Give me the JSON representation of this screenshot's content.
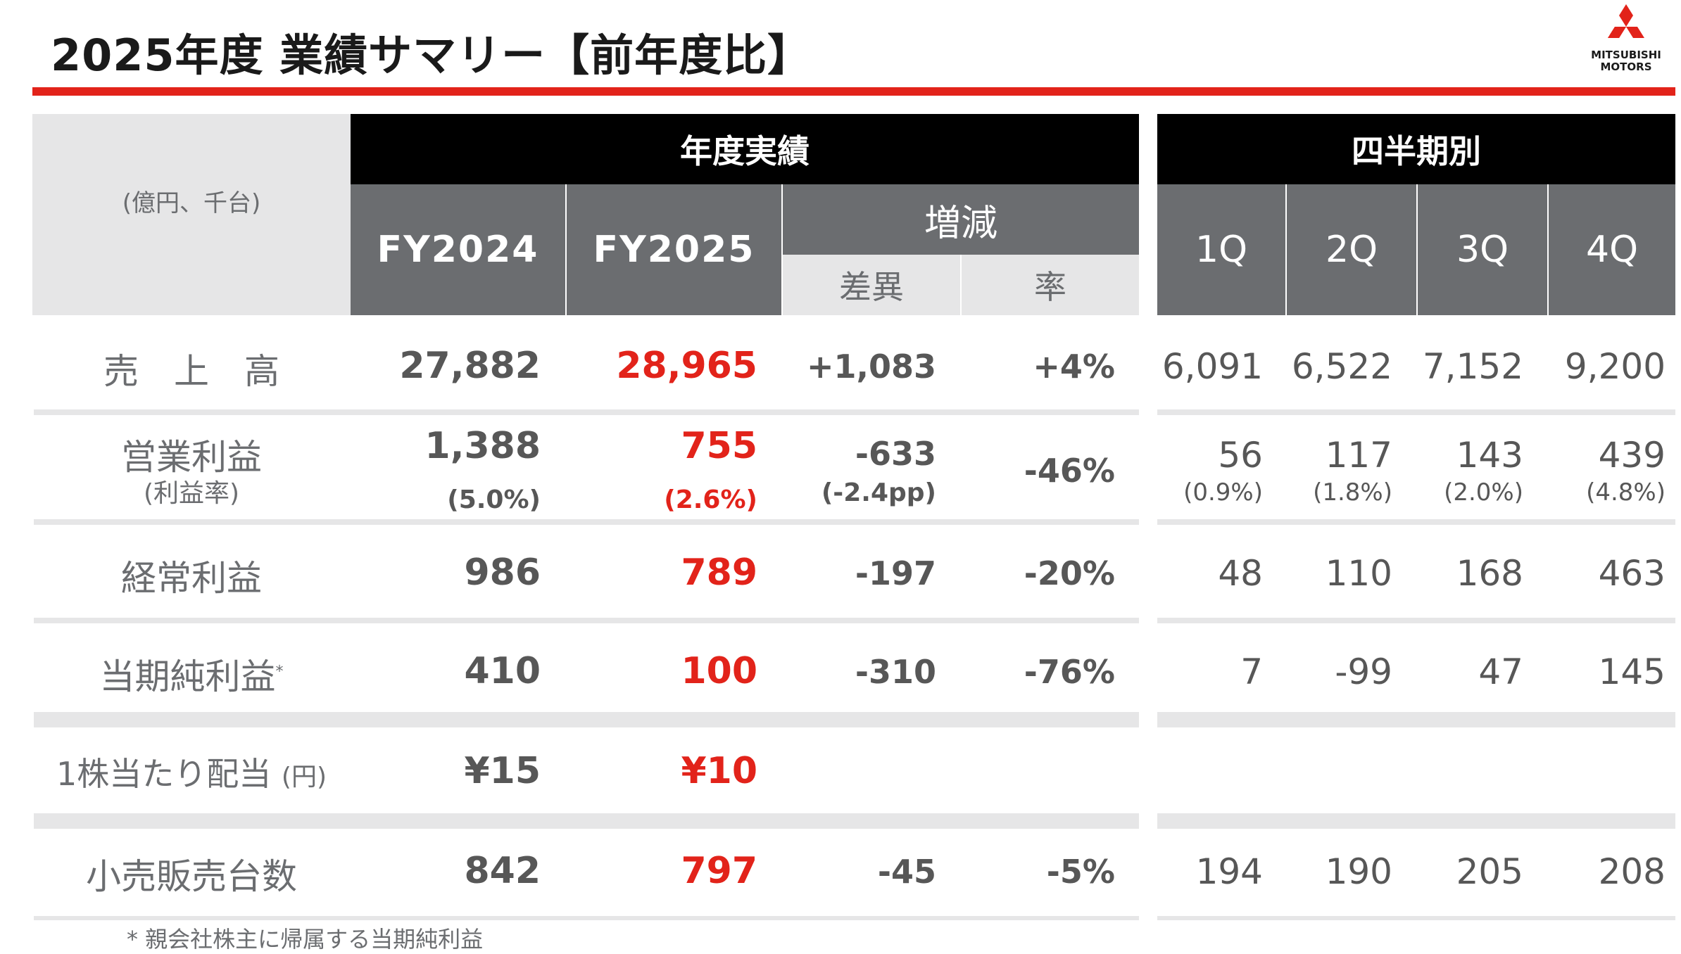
{
  "title": "2025年度 業績サマリー【前年度比】",
  "logo": {
    "line1": "MITSUBISHI",
    "line2": "MOTORS"
  },
  "header": {
    "unit": "(億円、千台)",
    "annual_group": "年度実績",
    "quarter_group": "四半期別",
    "fy2024": "FY2024",
    "fy2025": "FY2025",
    "change": "増減",
    "diff": "差異",
    "rate": "率",
    "q1": "1Q",
    "q2": "2Q",
    "q3": "3Q",
    "q4": "4Q"
  },
  "rows": {
    "sales": {
      "label": "売　上　高",
      "fy2024": "27,882",
      "fy2025": "28,965",
      "diff": "+1,083",
      "rate": "+4%",
      "q": [
        "6,091",
        "6,522",
        "7,152",
        "9,200"
      ]
    },
    "op": {
      "label": "営業利益",
      "sublabel": "(利益率)",
      "fy2024": "1,388",
      "fy2024_sub": "(5.0%)",
      "fy2025": "755",
      "fy2025_sub": "(2.6%)",
      "diff": "-633",
      "diff_sub": "(-2.4pp)",
      "rate": "-46%",
      "q": [
        "56",
        "117",
        "143",
        "439"
      ],
      "q_sub": [
        "(0.9%)",
        "(1.8%)",
        "(2.0%)",
        "(4.8%)"
      ]
    },
    "ord": {
      "label": "経常利益",
      "fy2024": "986",
      "fy2025": "789",
      "diff": "-197",
      "rate": "-20%",
      "q": [
        "48",
        "110",
        "168",
        "463"
      ]
    },
    "net": {
      "label": "当期純利益",
      "mark": "*",
      "fy2024": "410",
      "fy2025": "100",
      "diff": "-310",
      "rate": "-76%",
      "q": [
        "7",
        "-99",
        "47",
        "145"
      ]
    },
    "div": {
      "label": "1株当たり配当",
      "unit": "(円)",
      "fy2024": "¥15",
      "fy2025": "¥10"
    },
    "retail": {
      "label": "小売販売台数",
      "fy2024": "842",
      "fy2025": "797",
      "diff": "-45",
      "rate": "-5%",
      "q": [
        "194",
        "190",
        "205",
        "208"
      ]
    }
  },
  "footnote": "* 親会社株主に帰属する当期純利益"
}
